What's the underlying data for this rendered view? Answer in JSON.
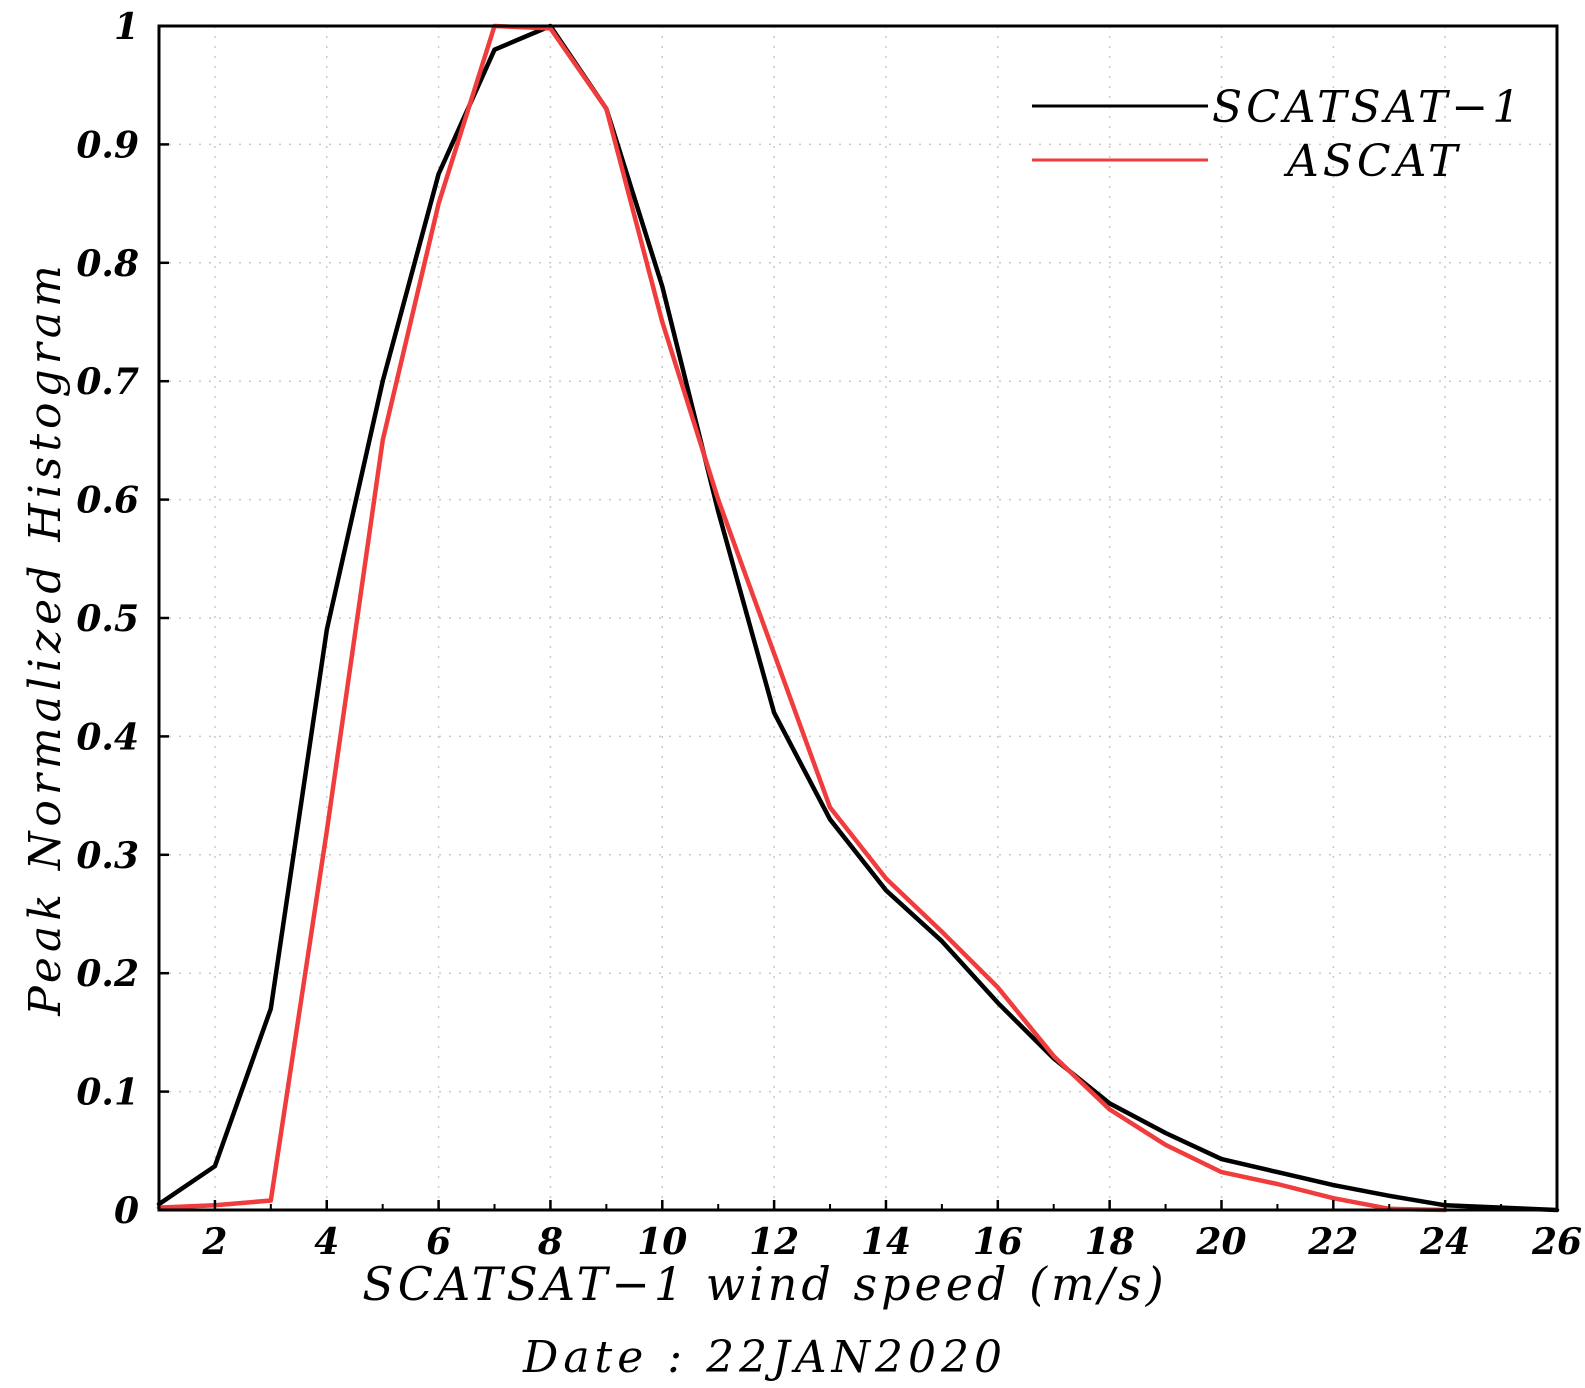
{
  "chart_data": {
    "type": "line",
    "xlabel": "SCATSAT−1 wind speed (m/s)",
    "ylabel": "Peak Normalized Histogram",
    "note": "Date : 22JAN2020",
    "xlim": [
      1,
      26
    ],
    "ylim": [
      0,
      1
    ],
    "xticks": [
      2,
      4,
      6,
      8,
      10,
      12,
      14,
      16,
      18,
      20,
      22,
      24,
      26
    ],
    "yticks": [
      0,
      0.1,
      0.2,
      0.3,
      0.4,
      0.5,
      0.6,
      0.7,
      0.8,
      0.9,
      1
    ],
    "ytick_labels": [
      "0",
      "0.1",
      "0.2",
      "0.3",
      "0.4",
      "0.5",
      "0.6",
      "0.7",
      "0.8",
      "0.9",
      "1"
    ],
    "grid": true,
    "legend": "top-right",
    "series": [
      {
        "name": "SCATSAT−1",
        "color": "#000000",
        "x": [
          1,
          2,
          3,
          4,
          5,
          6,
          7,
          8,
          9,
          10,
          11,
          12,
          13,
          14,
          15,
          16,
          17,
          18,
          19,
          20,
          21,
          22,
          23,
          24,
          25,
          26
        ],
        "y": [
          0.005,
          0.037,
          0.17,
          0.49,
          0.7,
          0.875,
          0.98,
          1.0,
          0.93,
          0.78,
          0.59,
          0.42,
          0.33,
          0.27,
          0.227,
          0.175,
          0.128,
          0.09,
          0.065,
          0.043,
          0.032,
          0.021,
          0.012,
          0.004,
          0.002,
          0.0
        ]
      },
      {
        "name": "ASCAT",
        "color": "#f03c3c",
        "x": [
          1,
          2,
          3,
          4,
          5,
          6,
          7,
          8,
          9,
          10,
          11,
          12,
          13,
          14,
          15,
          16,
          17,
          18,
          19,
          20,
          21,
          22,
          23,
          24
        ],
        "y": [
          0.002,
          0.004,
          0.008,
          0.32,
          0.65,
          0.85,
          1.0,
          0.998,
          0.93,
          0.75,
          0.6,
          0.47,
          0.34,
          0.28,
          0.235,
          0.188,
          0.13,
          0.085,
          0.055,
          0.032,
          0.022,
          0.01,
          0.001,
          0.0
        ]
      }
    ]
  }
}
